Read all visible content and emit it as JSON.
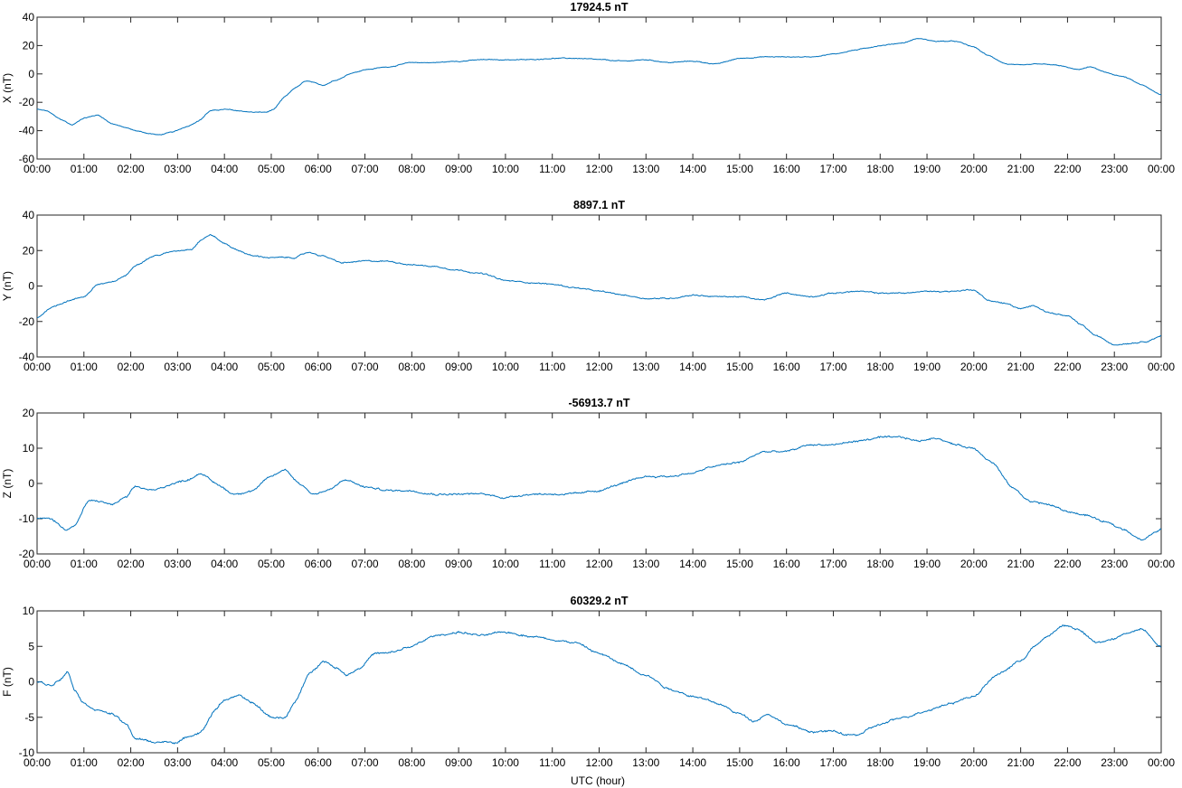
{
  "figure": {
    "xlabel": "UTC (hour)"
  },
  "chart_data": [
    {
      "type": "line",
      "title": "17924.5 nT",
      "ylabel": "X (nT)",
      "xlabel": "",
      "x_ticks": [
        "00:00",
        "01:00",
        "02:00",
        "03:00",
        "04:00",
        "05:00",
        "06:00",
        "07:00",
        "08:00",
        "09:00",
        "10:00",
        "11:00",
        "12:00",
        "13:00",
        "14:00",
        "15:00",
        "16:00",
        "17:00",
        "18:00",
        "19:00",
        "20:00",
        "21:00",
        "22:00",
        "23:00",
        "00:00"
      ],
      "xlim": [
        0,
        24
      ],
      "ylim": [
        -60,
        40
      ],
      "y_ticks": [
        -60,
        -40,
        -20,
        0,
        20,
        40
      ],
      "color": "#0072BD",
      "noise": 0.5,
      "series": [
        {
          "x": [
            0,
            0.2,
            0.5,
            0.75,
            1,
            1.3,
            1.6,
            1.9,
            2.1,
            2.4,
            2.6,
            2.9,
            3.2,
            3.45,
            3.7,
            4,
            4.3,
            4.6,
            4.9,
            5.05,
            5.3,
            5.5,
            5.75,
            6.1,
            6.4,
            6.75,
            7,
            7.5,
            8,
            8.5,
            9,
            9.5,
            10,
            10.5,
            11,
            11.5,
            12,
            12.5,
            13,
            13.5,
            14,
            14.5,
            15,
            15.5,
            16,
            16.5,
            17,
            17.5,
            18,
            18.5,
            18.8,
            19.2,
            19.6,
            20,
            20.3,
            20.7,
            21,
            21.4,
            21.8,
            22.2,
            22.5,
            22.8,
            23.2,
            23.6,
            24
          ],
          "y": [
            -25,
            -26,
            -32,
            -36,
            -31,
            -29,
            -35,
            -38,
            -40,
            -42,
            -43,
            -41,
            -37,
            -33,
            -26,
            -25,
            -26,
            -27,
            -27,
            -25,
            -16,
            -10,
            -5,
            -8,
            -4,
            1,
            3,
            5,
            8,
            8,
            9,
            10,
            10,
            10,
            11,
            11,
            10,
            9,
            10,
            8,
            9,
            7,
            11,
            12,
            12,
            12,
            14,
            17,
            20,
            22,
            25,
            23,
            23,
            19,
            13,
            7,
            6,
            7,
            6,
            3,
            5,
            1,
            -2,
            -8,
            -15
          ]
        }
      ]
    },
    {
      "type": "line",
      "title": "8897.1 nT",
      "ylabel": "Y (nT)",
      "xlabel": "",
      "x_ticks": [
        "00:00",
        "01:00",
        "02:00",
        "03:00",
        "04:00",
        "05:00",
        "06:00",
        "07:00",
        "08:00",
        "09:00",
        "10:00",
        "11:00",
        "12:00",
        "13:00",
        "14:00",
        "15:00",
        "16:00",
        "17:00",
        "18:00",
        "19:00",
        "20:00",
        "21:00",
        "22:00",
        "23:00",
        "00:00"
      ],
      "xlim": [
        0,
        24
      ],
      "ylim": [
        -40,
        40
      ],
      "y_ticks": [
        -40,
        -20,
        0,
        20,
        40
      ],
      "color": "#0072BD",
      "noise": 0.6,
      "series": [
        {
          "x": [
            0,
            0.3,
            0.7,
            1,
            1.3,
            1.6,
            1.9,
            2.1,
            2.5,
            3,
            3.3,
            3.5,
            3.7,
            4,
            4.3,
            4.6,
            5,
            5.5,
            5.8,
            6.1,
            6.5,
            7,
            7.5,
            8,
            8.5,
            9,
            9.5,
            10,
            10.5,
            11,
            11.5,
            12,
            12.5,
            13,
            13.5,
            14,
            14.5,
            15,
            15.5,
            16,
            16.5,
            17,
            17.5,
            18,
            18.5,
            19,
            19.5,
            20,
            20.3,
            20.7,
            21,
            21.3,
            21.6,
            22,
            22.3,
            22.6,
            23,
            23.4,
            23.7,
            24
          ],
          "y": [
            -18,
            -12,
            -8,
            -6,
            1,
            2,
            6,
            12,
            17,
            20,
            21,
            26,
            29,
            24,
            20,
            17,
            16,
            16,
            19,
            17,
            13,
            14,
            14,
            12,
            11,
            9,
            7,
            3,
            2,
            1,
            -1,
            -3,
            -5,
            -7,
            -7,
            -5,
            -6,
            -6,
            -8,
            -4,
            -6,
            -4,
            -3,
            -4,
            -4,
            -3,
            -3,
            -2,
            -8,
            -10,
            -13,
            -11,
            -15,
            -17,
            -22,
            -28,
            -33,
            -32,
            -31,
            -28
          ]
        }
      ]
    },
    {
      "type": "line",
      "title": "-56913.7 nT",
      "ylabel": "Z (nT)",
      "xlabel": "",
      "x_ticks": [
        "00:00",
        "01:00",
        "02:00",
        "03:00",
        "04:00",
        "05:00",
        "06:00",
        "07:00",
        "08:00",
        "09:00",
        "10:00",
        "11:00",
        "12:00",
        "13:00",
        "14:00",
        "15:00",
        "16:00",
        "17:00",
        "18:00",
        "19:00",
        "20:00",
        "21:00",
        "22:00",
        "23:00",
        "00:00"
      ],
      "xlim": [
        0,
        24
      ],
      "ylim": [
        -20,
        20
      ],
      "y_ticks": [
        -20,
        -10,
        0,
        10,
        20
      ],
      "color": "#0072BD",
      "noise": 0.45,
      "series": [
        {
          "x": [
            0,
            0.3,
            0.6,
            0.8,
            1.1,
            1.3,
            1.6,
            1.9,
            2.1,
            2.5,
            2.9,
            3.2,
            3.5,
            3.8,
            4.2,
            4.6,
            5,
            5.3,
            5.6,
            5.9,
            6.2,
            6.6,
            7,
            7.5,
            8,
            8.5,
            9,
            9.5,
            10,
            10.5,
            11,
            11.5,
            12,
            12.5,
            13,
            13.5,
            14,
            14.5,
            15,
            15.5,
            16,
            16.5,
            17,
            17.5,
            18,
            18.5,
            18.8,
            19.2,
            19.6,
            20,
            20.4,
            20.8,
            21.2,
            21.6,
            22,
            22.4,
            22.8,
            23.2,
            23.6,
            24
          ],
          "y": [
            -10,
            -10,
            -13,
            -12,
            -5,
            -5,
            -6,
            -4,
            -1,
            -2,
            0,
            1,
            3,
            0,
            -3,
            -2,
            2,
            4,
            0,
            -3,
            -2,
            1,
            -1,
            -2,
            -2,
            -3,
            -3,
            -3,
            -4,
            -3,
            -3,
            -3,
            -2,
            0,
            2,
            2,
            3,
            5,
            6,
            9,
            9,
            11,
            11,
            12,
            13,
            13,
            12,
            13,
            11,
            10,
            6,
            -1,
            -5,
            -6,
            -8,
            -9,
            -11,
            -13,
            -16,
            -13
          ]
        }
      ]
    },
    {
      "type": "line",
      "title": "60329.2 nT",
      "ylabel": "F (nT)",
      "xlabel": "UTC (hour)",
      "x_ticks": [
        "00:00",
        "01:00",
        "02:00",
        "03:00",
        "04:00",
        "05:00",
        "06:00",
        "07:00",
        "08:00",
        "09:00",
        "10:00",
        "11:00",
        "12:00",
        "13:00",
        "14:00",
        "15:00",
        "16:00",
        "17:00",
        "18:00",
        "19:00",
        "20:00",
        "21:00",
        "22:00",
        "23:00",
        "00:00"
      ],
      "xlim": [
        0,
        24
      ],
      "ylim": [
        -10,
        10
      ],
      "y_ticks": [
        -10,
        -5,
        0,
        5,
        10
      ],
      "color": "#0072BD",
      "noise": 0.25,
      "series": [
        {
          "x": [
            0,
            0.3,
            0.5,
            0.65,
            0.8,
            1,
            1.3,
            1.6,
            1.9,
            2.1,
            2.5,
            3,
            3.3,
            3.5,
            3.8,
            4,
            4.3,
            4.6,
            5,
            5.3,
            5.5,
            5.8,
            6.1,
            6.4,
            6.6,
            6.9,
            7.2,
            7.5,
            8,
            8.5,
            9,
            9.5,
            10,
            10.5,
            11,
            11.5,
            12,
            12.5,
            13,
            13.5,
            14,
            14.5,
            15,
            15.3,
            15.6,
            16,
            16.5,
            17,
            17.3,
            17.5,
            18,
            18.5,
            19,
            19.5,
            20,
            20.5,
            21,
            21.3,
            21.6,
            21.9,
            22.2,
            22.6,
            23,
            23.3,
            23.6,
            24
          ],
          "y": [
            0,
            -0.5,
            0.5,
            1.5,
            -1,
            -3,
            -4,
            -4.5,
            -6,
            -8,
            -8.5,
            -8.5,
            -7.5,
            -7,
            -4,
            -2.5,
            -2,
            -3,
            -5,
            -5,
            -3,
            1,
            3,
            2,
            1,
            2,
            4,
            4,
            5,
            6.5,
            7,
            6.5,
            7,
            6.5,
            6,
            5.5,
            4,
            2.5,
            1,
            -1,
            -2,
            -3,
            -4.5,
            -5.5,
            -4.5,
            -6,
            -7,
            -7,
            -7.5,
            -7.5,
            -6,
            -5,
            -4,
            -3,
            -2,
            1,
            3,
            5,
            6.5,
            8,
            7.5,
            5.5,
            6,
            7,
            7.5,
            5
          ]
        }
      ]
    }
  ]
}
